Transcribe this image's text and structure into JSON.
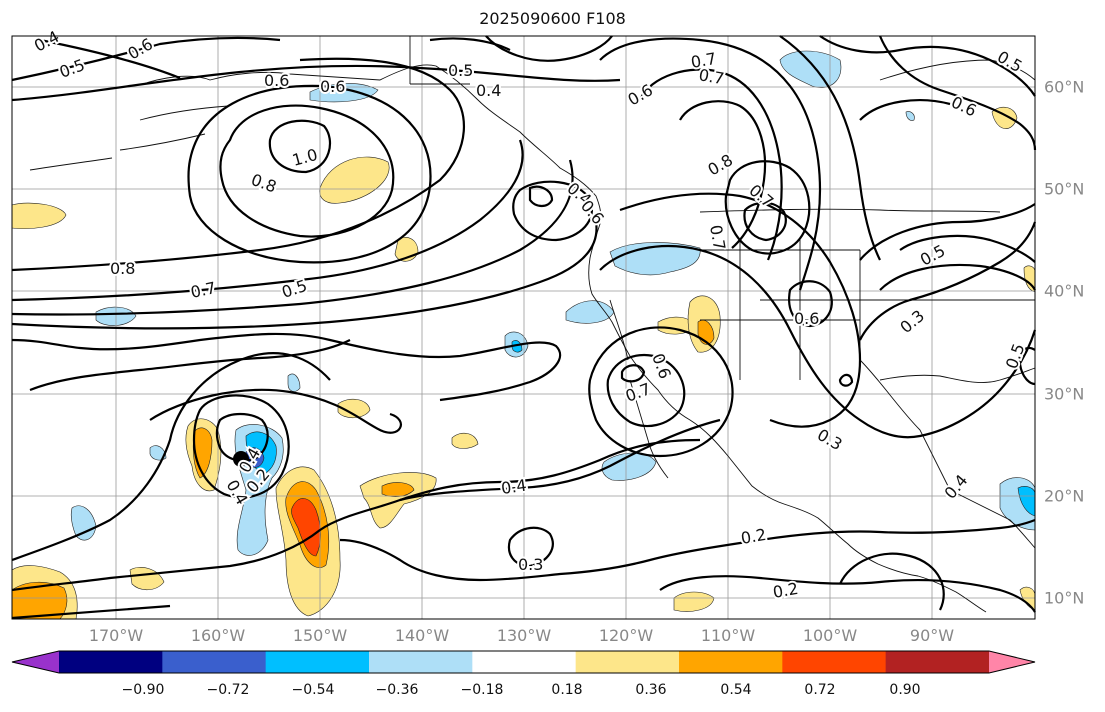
{
  "title": "2025090600 F108",
  "lon_labels": [
    "170°W",
    "160°W",
    "150°W",
    "140°W",
    "130°W",
    "120°W",
    "110°W",
    "100°W",
    "90°W"
  ],
  "lat_labels": [
    "60°N",
    "50°N",
    "40°N",
    "30°N",
    "20°N",
    "10°N"
  ],
  "colorbar": {
    "ticks": [
      "−0.90",
      "−0.72",
      "−0.54",
      "−0.36",
      "−0.18",
      "0.18",
      "0.36",
      "0.54",
      "0.72",
      "0.90"
    ],
    "colors": [
      "#9932cc",
      "#000080",
      "#3a5fcd",
      "#00bfff",
      "#aedff7",
      "#ffffff",
      "#fde68a",
      "#ffa500",
      "#ff4500",
      "#b22222",
      "#ff85a8"
    ]
  },
  "contour_labels": [
    "0.4",
    "0.5",
    "0.6",
    "0.6",
    "0.6",
    "0.5",
    "0.4",
    "0.8",
    "0.7",
    "1.0",
    "0.8",
    "0.6",
    "0.7",
    "0.8",
    "0.7",
    "0.5",
    "0.4",
    "0.5",
    "0.6",
    "0.3",
    "0.7",
    "0.6",
    "0.4",
    "0.4",
    "0.2",
    "0.3",
    "0.3",
    "0.2",
    "0.2",
    "0.4",
    "0.5",
    "0.6",
    "0.7",
    "0.5",
    "0.6",
    "0.4",
    "0.7"
  ]
}
